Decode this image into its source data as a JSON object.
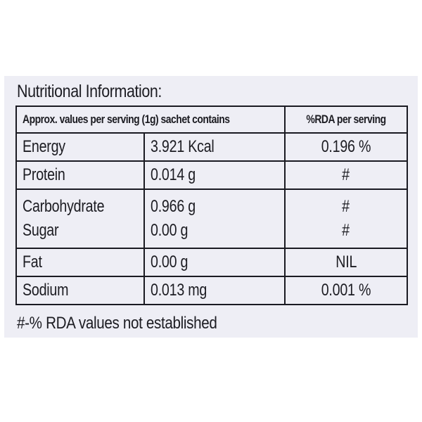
{
  "label": {
    "heading": "Nutritional Information:",
    "columns": [
      "Approx. values per serving (1g) sachet contains",
      "%RDA per serving"
    ],
    "rows": [
      {
        "names": [
          "Energy"
        ],
        "values": [
          "3.921 Kcal"
        ],
        "rda": [
          "0.196 %"
        ]
      },
      {
        "names": [
          "Protein"
        ],
        "values": [
          "0.014 g"
        ],
        "rda": [
          "#"
        ]
      },
      {
        "names": [
          "Carbohydrate",
          "Sugar"
        ],
        "values": [
          "0.966 g",
          "0.00 g"
        ],
        "rda": [
          "#",
          "#"
        ]
      },
      {
        "names": [
          "Fat"
        ],
        "values": [
          "0.00 g"
        ],
        "rda": [
          "NIL"
        ]
      },
      {
        "names": [
          "Sodium"
        ],
        "values": [
          "0.013 mg"
        ],
        "rda": [
          "0.001 %"
        ]
      }
    ],
    "footnote": "#-% RDA values not established"
  }
}
